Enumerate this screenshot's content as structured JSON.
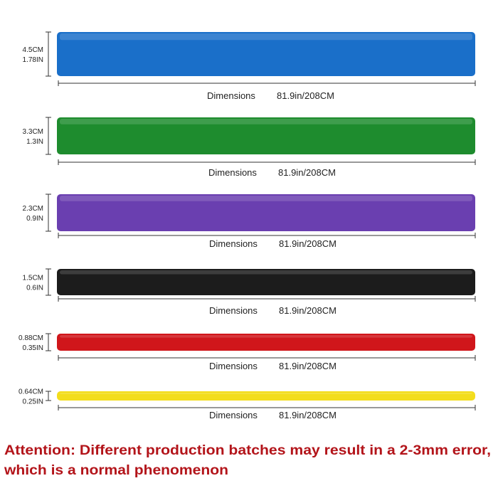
{
  "bands": [
    {
      "width_cm": "4.5CM",
      "width_in": "1.78IN",
      "label": "Dimensions",
      "length": "81.9in/208CM",
      "color": "#1a6fc9"
    },
    {
      "width_cm": "3.3CM",
      "width_in": "1.3IN",
      "label": "Dimensions",
      "length": "81.9in/208CM",
      "color": "#1e8c2e"
    },
    {
      "width_cm": "2.3CM",
      "width_in": "0.9IN",
      "label": "Dimensions",
      "length": "81.9in/208CM",
      "color": "#6a3fb0"
    },
    {
      "width_cm": "1.5CM",
      "width_in": "0.6IN",
      "label": "Dimensions",
      "length": "81.9in/208CM",
      "color": "#1c1c1c"
    },
    {
      "width_cm": "0.88CM",
      "width_in": "0.35IN",
      "label": "Dimensions",
      "length": "81.9in/208CM",
      "color": "#d0161b"
    },
    {
      "width_cm": "0.64CM",
      "width_in": "0.25IN",
      "label": "Dimensions",
      "length": "81.9in/208CM",
      "color": "#f3dd1c"
    }
  ],
  "attention": [
    "Attention: Different production batches may result in a 2-3mm error,",
    "which is a normal phenomenon"
  ]
}
